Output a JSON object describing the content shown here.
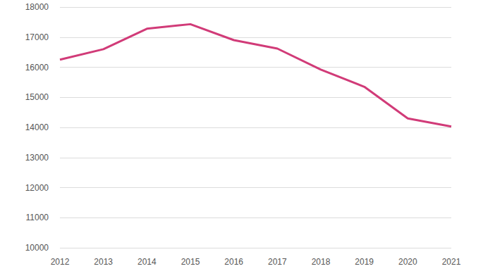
{
  "chart_data": {
    "type": "line",
    "categories": [
      "2012",
      "2013",
      "2014",
      "2015",
      "2016",
      "2017",
      "2018",
      "2019",
      "2020",
      "2021"
    ],
    "values": [
      16250,
      16600,
      17280,
      17430,
      16900,
      16620,
      15920,
      15350,
      14300,
      14030
    ],
    "color": "#d13b78",
    "ylim": [
      10000,
      18000
    ],
    "yticks": [
      10000,
      11000,
      12000,
      13000,
      14000,
      15000,
      16000,
      17000,
      18000
    ],
    "grid": true
  }
}
